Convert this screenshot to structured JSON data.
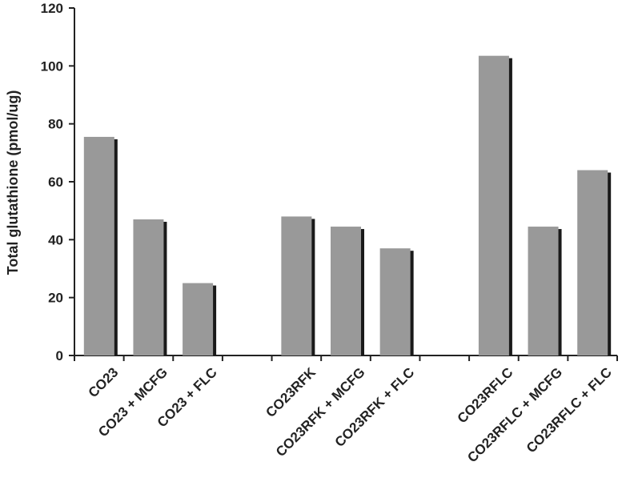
{
  "chart_data": {
    "type": "bar",
    "title": "",
    "xlabel": "",
    "ylabel": "Total glutathione (pmol/ug)",
    "ylim": [
      0,
      120
    ],
    "yticks": [
      0,
      20,
      40,
      60,
      80,
      100,
      120
    ],
    "grid": false,
    "categories": [
      "CO23",
      "CO23 + MCFG",
      "CO23 + FLC",
      "",
      "CO23RFK",
      "CO23RFK + MCFG",
      "CO23RFK + FLC",
      "",
      "CO23RFLC",
      "CO23RFLC + MCFG",
      "CO23RFLC + FLC"
    ],
    "values": [
      75.5,
      47,
      25,
      null,
      48,
      44.5,
      37,
      null,
      103.5,
      44.5,
      64
    ],
    "colors": {
      "bar": "#999999",
      "bar_shadow": "#1a1a1a",
      "axis": "#222222",
      "text": "#222222"
    }
  }
}
